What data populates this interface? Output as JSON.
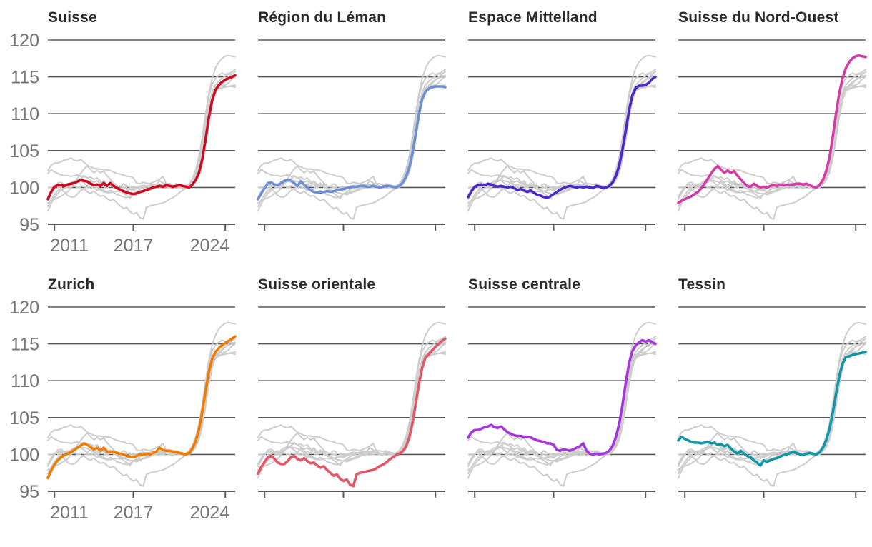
{
  "figure": {
    "language": "fr",
    "description": "Small-multiples line charts of an index (base 100) for Switzerland and its seven major regions, quarterly points from about 2010 to end 2024"
  },
  "chart_data": {
    "type": "line",
    "layout": "small-multiples-2x4",
    "ylim": [
      95,
      120
    ],
    "yticks": [
      120,
      115,
      110,
      105,
      100,
      95
    ],
    "baseline": 100,
    "grid": "horizontal-only",
    "x_tick_labels": [
      "2011",
      "2017",
      "2024"
    ],
    "x_tick_indices": [
      2,
      26,
      54
    ],
    "points_per_series": 58,
    "style": {
      "gridline_color": "#58585a",
      "axis_color": "#58585a",
      "dashed_baseline_color": "#c6c6c6",
      "gray_series_color": "#cdcdcd",
      "axis_label_color": "#767676",
      "title_color": "#2b2b2b",
      "background": "#ffffff"
    },
    "panels": [
      {
        "title": "Suisse",
        "series_slug": "suisse"
      },
      {
        "title": "Région du Léman",
        "series_slug": "region-du-leman"
      },
      {
        "title": "Espace Mittelland",
        "series_slug": "espace-mittelland"
      },
      {
        "title": "Suisse du Nord-Ouest",
        "series_slug": "suisse-du-nord-ouest"
      },
      {
        "title": "Zurich",
        "series_slug": "zurich"
      },
      {
        "title": "Suisse orientale",
        "series_slug": "suisse-orientale"
      },
      {
        "title": "Suisse centrale",
        "series_slug": "suisse-centrale"
      },
      {
        "title": "Tessin",
        "series_slug": "tessin"
      }
    ],
    "series": [
      {
        "name": "Suisse",
        "slug": "suisse",
        "color": "#d2091e",
        "values": [
          98.4,
          99.4,
          100.1,
          100.3,
          100.3,
          100.2,
          100.4,
          100.5,
          100.6,
          100.8,
          101.0,
          100.9,
          100.8,
          100.5,
          100.3,
          100.4,
          100.2,
          100.6,
          100.2,
          100.6,
          100.2,
          99.9,
          99.7,
          99.5,
          99.3,
          99.2,
          99.1,
          99.2,
          99.4,
          99.5,
          99.7,
          99.8,
          100.0,
          100.1,
          100.2,
          100.1,
          100.3,
          100.2,
          100.1,
          100.2,
          100.3,
          100.2,
          100.1,
          100.0,
          100.4,
          101.0,
          102.0,
          103.8,
          106.5,
          109.5,
          111.8,
          113.2,
          113.9,
          114.3,
          114.6,
          114.8,
          115.0,
          115.2
        ]
      },
      {
        "name": "Région du Léman",
        "slug": "region-du-leman",
        "color": "#6f8ed8",
        "values": [
          98.4,
          99.2,
          99.9,
          100.6,
          100.7,
          100.4,
          100.3,
          100.6,
          100.9,
          101.0,
          100.9,
          100.6,
          100.2,
          100.8,
          100.4,
          100.0,
          99.6,
          99.4,
          99.3,
          99.3,
          99.4,
          99.5,
          99.4,
          99.5,
          99.6,
          99.7,
          99.8,
          99.9,
          100.0,
          100.1,
          100.1,
          100.2,
          100.2,
          100.1,
          100.1,
          100.2,
          100.1,
          100.0,
          100.1,
          100.2,
          100.2,
          100.1,
          100.0,
          100.2,
          100.6,
          101.4,
          102.6,
          104.6,
          107.2,
          110.0,
          112.0,
          113.0,
          113.4,
          113.6,
          113.7,
          113.7,
          113.7,
          113.6
        ]
      },
      {
        "name": "Espace Mittelland",
        "slug": "espace-mittelland",
        "color": "#4a28cb",
        "values": [
          98.7,
          99.5,
          100.1,
          100.3,
          100.4,
          100.3,
          100.5,
          100.4,
          100.2,
          100.1,
          100.2,
          100.1,
          100.0,
          100.1,
          99.9,
          99.6,
          99.8,
          99.6,
          99.4,
          99.6,
          99.3,
          99.0,
          98.9,
          98.7,
          98.6,
          98.8,
          99.1,
          99.4,
          99.7,
          99.9,
          100.1,
          100.2,
          100.1,
          100.0,
          100.1,
          100.0,
          100.1,
          100.0,
          99.9,
          100.2,
          100.1,
          99.9,
          100.0,
          100.2,
          100.7,
          101.6,
          103.0,
          105.2,
          107.8,
          110.5,
          112.5,
          113.5,
          113.8,
          113.8,
          113.9,
          114.2,
          114.7,
          115.0
        ]
      },
      {
        "name": "Suisse du Nord-Ouest",
        "slug": "suisse-du-nord-ouest",
        "color": "#d53ba6",
        "values": [
          97.9,
          98.2,
          98.4,
          98.6,
          98.8,
          99.1,
          99.4,
          99.9,
          100.5,
          101.2,
          101.9,
          102.5,
          102.9,
          102.4,
          102.0,
          102.3,
          102.0,
          102.2,
          101.6,
          101.1,
          100.6,
          100.2,
          100.1,
          100.5,
          100.2,
          100.0,
          100.1,
          100.0,
          100.2,
          100.3,
          100.2,
          100.3,
          100.4,
          100.3,
          100.4,
          100.4,
          100.5,
          100.5,
          100.4,
          100.5,
          100.3,
          100.1,
          100.0,
          100.3,
          101.0,
          102.2,
          104.0,
          106.8,
          110.0,
          112.8,
          114.8,
          116.2,
          117.0,
          117.5,
          117.8,
          117.9,
          117.8,
          117.7
        ]
      },
      {
        "name": "Zurich",
        "slug": "zurich",
        "color": "#ef7c00",
        "values": [
          96.8,
          97.8,
          98.6,
          99.2,
          99.6,
          99.9,
          100.1,
          100.3,
          100.6,
          100.9,
          101.2,
          101.5,
          101.3,
          101.0,
          100.7,
          100.9,
          100.5,
          100.9,
          100.4,
          100.3,
          100.4,
          100.2,
          100.1,
          100.0,
          99.8,
          99.7,
          99.6,
          99.8,
          100.0,
          99.9,
          100.1,
          100.0,
          100.2,
          100.4,
          100.9,
          100.6,
          100.5,
          100.5,
          100.4,
          100.3,
          100.2,
          100.1,
          100.0,
          100.2,
          100.8,
          101.8,
          103.4,
          105.8,
          108.6,
          111.2,
          113.0,
          113.9,
          114.4,
          114.8,
          115.1,
          115.4,
          115.7,
          116.0
        ]
      },
      {
        "name": "Suisse orientale",
        "slug": "suisse-orientale",
        "color": "#e25765",
        "values": [
          97.4,
          98.3,
          99.0,
          99.6,
          99.8,
          99.4,
          98.9,
          98.7,
          98.7,
          99.1,
          99.6,
          99.8,
          99.4,
          99.2,
          99.5,
          99.1,
          98.8,
          98.9,
          98.5,
          98.2,
          98.4,
          97.9,
          97.5,
          97.1,
          97.3,
          96.7,
          96.4,
          96.6,
          95.9,
          95.7,
          97.3,
          97.5,
          97.6,
          97.7,
          97.8,
          97.9,
          98.1,
          98.4,
          98.6,
          98.9,
          99.3,
          99.6,
          99.9,
          100.1,
          100.4,
          101.0,
          102.2,
          104.2,
          106.8,
          109.6,
          111.8,
          113.2,
          113.6,
          114.1,
          114.6,
          115.0,
          115.4,
          115.7
        ]
      },
      {
        "name": "Suisse centrale",
        "slug": "suisse-centrale",
        "color": "#a636db",
        "values": [
          102.3,
          103.0,
          103.3,
          103.3,
          103.5,
          103.7,
          103.8,
          104.0,
          103.7,
          103.6,
          103.8,
          103.4,
          103.0,
          102.8,
          102.6,
          102.5,
          102.5,
          102.4,
          102.4,
          102.3,
          102.1,
          101.9,
          101.8,
          101.7,
          101.5,
          101.5,
          101.3,
          100.6,
          100.5,
          100.7,
          100.6,
          100.5,
          100.7,
          100.9,
          101.1,
          101.5,
          100.5,
          100.1,
          100.0,
          100.1,
          100.0,
          100.1,
          100.2,
          100.5,
          101.2,
          102.4,
          104.2,
          106.8,
          109.8,
          112.4,
          114.0,
          114.8,
          115.2,
          115.5,
          115.3,
          115.5,
          115.2,
          115.0
        ]
      },
      {
        "name": "Tessin",
        "slug": "tessin",
        "color": "#1097a7",
        "values": [
          101.9,
          102.4,
          102.1,
          101.9,
          101.7,
          101.6,
          101.6,
          101.5,
          101.6,
          101.7,
          101.5,
          101.6,
          101.3,
          101.4,
          101.1,
          101.3,
          100.8,
          100.4,
          100.1,
          100.5,
          100.1,
          99.8,
          99.6,
          99.2,
          98.9,
          98.5,
          99.2,
          99.0,
          99.2,
          99.4,
          99.5,
          99.7,
          99.9,
          100.0,
          100.2,
          100.3,
          100.2,
          100.0,
          99.9,
          100.1,
          100.2,
          100.1,
          100.0,
          100.3,
          100.9,
          101.9,
          103.4,
          105.6,
          108.2,
          110.6,
          112.3,
          113.2,
          113.3,
          113.5,
          113.6,
          113.7,
          113.8,
          113.9
        ]
      }
    ]
  }
}
